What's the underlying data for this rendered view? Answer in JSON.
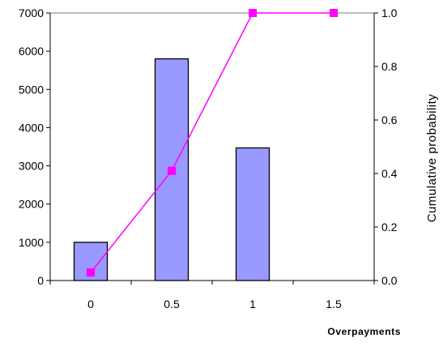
{
  "chart_data": {
    "type": "bar",
    "categories": [
      "0",
      "0.5",
      "1",
      "1.5"
    ],
    "xlabel": "Overpayments",
    "ylabel": "",
    "y2label": "Cumulative probability",
    "ylim": [
      0,
      7000
    ],
    "y2lim": [
      0.0,
      1.0
    ],
    "y_ticks": [
      "0",
      "1000",
      "2000",
      "3000",
      "4000",
      "5000",
      "6000",
      "7000"
    ],
    "y2_ticks": [
      "0.0",
      "0.2",
      "0.4",
      "0.6",
      "0.8",
      "1.0"
    ],
    "grid": false,
    "legend": "none",
    "series": [
      {
        "kind": "bar",
        "axis": "left",
        "values": [
          1000,
          5800,
          3470,
          0
        ],
        "color": "#9999ff",
        "edge_color": "#000000"
      },
      {
        "kind": "line",
        "axis": "right",
        "values": [
          0.03,
          0.41,
          1.0,
          1.0
        ],
        "color": "#ff00ff",
        "marker": "square"
      }
    ]
  }
}
